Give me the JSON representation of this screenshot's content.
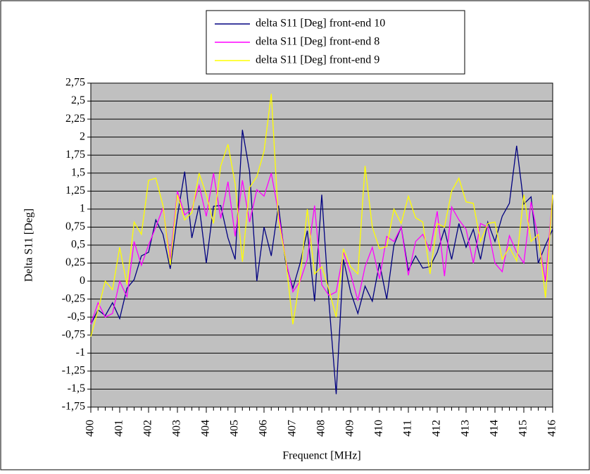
{
  "chart_data": {
    "type": "line",
    "x_label": "Frequenct [MHz]",
    "y_label": "Delta S11 [Deg]",
    "legend": "top",
    "grid": true,
    "background": "#c0c0c0",
    "x": [
      400,
      400.25,
      400.5,
      400.75,
      401,
      401.25,
      401.5,
      401.75,
      402,
      402.25,
      402.5,
      402.75,
      403,
      403.25,
      403.5,
      403.75,
      404,
      404.25,
      404.5,
      404.75,
      405,
      405.25,
      405.5,
      405.75,
      406,
      406.25,
      406.5,
      406.75,
      407,
      407.25,
      407.5,
      407.75,
      408,
      408.25,
      408.5,
      408.75,
      409,
      409.25,
      409.5,
      409.75,
      410,
      410.25,
      410.5,
      410.75,
      411,
      411.25,
      411.5,
      411.75,
      412,
      412.25,
      412.5,
      412.75,
      413,
      413.25,
      413.5,
      413.75,
      414,
      414.25,
      414.5,
      414.75,
      415,
      415.25,
      415.5,
      415.75,
      416
    ],
    "xlim": [
      400,
      416
    ],
    "xticks": [
      400,
      401,
      402,
      403,
      404,
      405,
      406,
      407,
      408,
      409,
      410,
      411,
      412,
      413,
      414,
      415,
      416
    ],
    "ylim": [
      -1.75,
      2.75
    ],
    "yticks": [
      {
        "value": 2.75,
        "label": "2,75"
      },
      {
        "value": 2.5,
        "label": "2,5"
      },
      {
        "value": 2.25,
        "label": "2,25"
      },
      2,
      {
        "value": 1.75,
        "label": "1,75"
      },
      {
        "value": 1.5,
        "label": "1,5"
      },
      {
        "value": 1.25,
        "label": "1,25"
      },
      1,
      {
        "value": 0.75,
        "label": "0,75"
      },
      {
        "value": 0.5,
        "label": "0,5"
      },
      {
        "value": 0.25,
        "label": "0,25"
      },
      0,
      {
        "value": -0.25,
        "label": "-0,25"
      },
      {
        "value": -0.5,
        "label": "-0,5"
      },
      {
        "value": -0.75,
        "label": "-0,75"
      },
      -1,
      {
        "value": -1.25,
        "label": "-1,25"
      },
      {
        "value": -1.5,
        "label": "-1,5"
      },
      {
        "value": -1.75,
        "label": "-1,75"
      }
    ],
    "series": [
      {
        "name": "delta S11 [Deg] front-end 10",
        "color": "#000080",
        "values": [
          -0.6,
          -0.4,
          -0.48,
          -0.3,
          -0.52,
          -0.1,
          0.02,
          0.35,
          0.4,
          0.85,
          0.65,
          0.17,
          0.9,
          1.52,
          0.6,
          1.05,
          0.25,
          1.04,
          1.05,
          0.6,
          0.3,
          2.1,
          1.52,
          0,
          0.75,
          0.35,
          1.05,
          0.25,
          -0.1,
          0.25,
          0.7,
          -0.28,
          1.2,
          -0.3,
          -1.57,
          0.3,
          -0.15,
          -0.45,
          -0.07,
          -0.28,
          0.25,
          -0.25,
          0.5,
          0.75,
          0.15,
          0.35,
          0.18,
          0.2,
          0.4,
          0.72,
          0.3,
          0.8,
          0.47,
          0.72,
          0.3,
          0.82,
          0.55,
          0.9,
          1.08,
          1.88,
          1.07,
          1.17,
          0.25,
          0.5,
          0.72
        ]
      },
      {
        "name": "delta S11 [Deg] front-end 8",
        "color": "#ff00ff",
        "values": [
          -0.6,
          -0.3,
          -0.5,
          -0.45,
          0,
          -0.22,
          0.55,
          0.22,
          0.5,
          0.75,
          1.02,
          0.3,
          1.25,
          0.92,
          1,
          1.33,
          0.9,
          1.5,
          0.87,
          1.38,
          0.62,
          1.4,
          0.82,
          1.27,
          1.18,
          1.5,
          0.95,
          0.3,
          -0.15,
          0,
          0.3,
          1.05,
          -0.05,
          -0.2,
          -0.15,
          0.4,
          0.1,
          -0.27,
          0.2,
          0.47,
          0.03,
          0.62,
          0.55,
          0.75,
          0.08,
          0.55,
          0.65,
          0.42,
          0.97,
          0.07,
          1.03,
          0.85,
          0.72,
          0.25,
          0.8,
          0.75,
          0.25,
          0.13,
          0.63,
          0.4,
          0.25,
          1.1,
          0.6,
          0,
          1.2
        ]
      },
      {
        "name": "delta S11 [Deg] front-end 9",
        "color": "#ffff00",
        "values": [
          -0.77,
          -0.4,
          0,
          -0.12,
          0.47,
          -0.05,
          0.82,
          0.65,
          1.4,
          1.43,
          1.05,
          0.22,
          1.2,
          0.85,
          0.95,
          1.5,
          1.2,
          0.8,
          1.6,
          1.9,
          1.35,
          0.27,
          1.3,
          1.45,
          1.8,
          2.6,
          0.85,
          0.3,
          -0.6,
          0.05,
          1,
          0.1,
          0.2,
          -0.12,
          -0.5,
          0.45,
          0.2,
          0.1,
          1.6,
          0.75,
          0.45,
          0.48,
          1,
          0.8,
          1.18,
          0.88,
          0.82,
          0.1,
          0.8,
          0.75,
          1.25,
          1.43,
          1.1,
          1.08,
          0.55,
          0.8,
          0.82,
          0.3,
          0.47,
          0.28,
          1.2,
          0.55,
          0.65,
          -0.23,
          1.2
        ]
      }
    ]
  }
}
